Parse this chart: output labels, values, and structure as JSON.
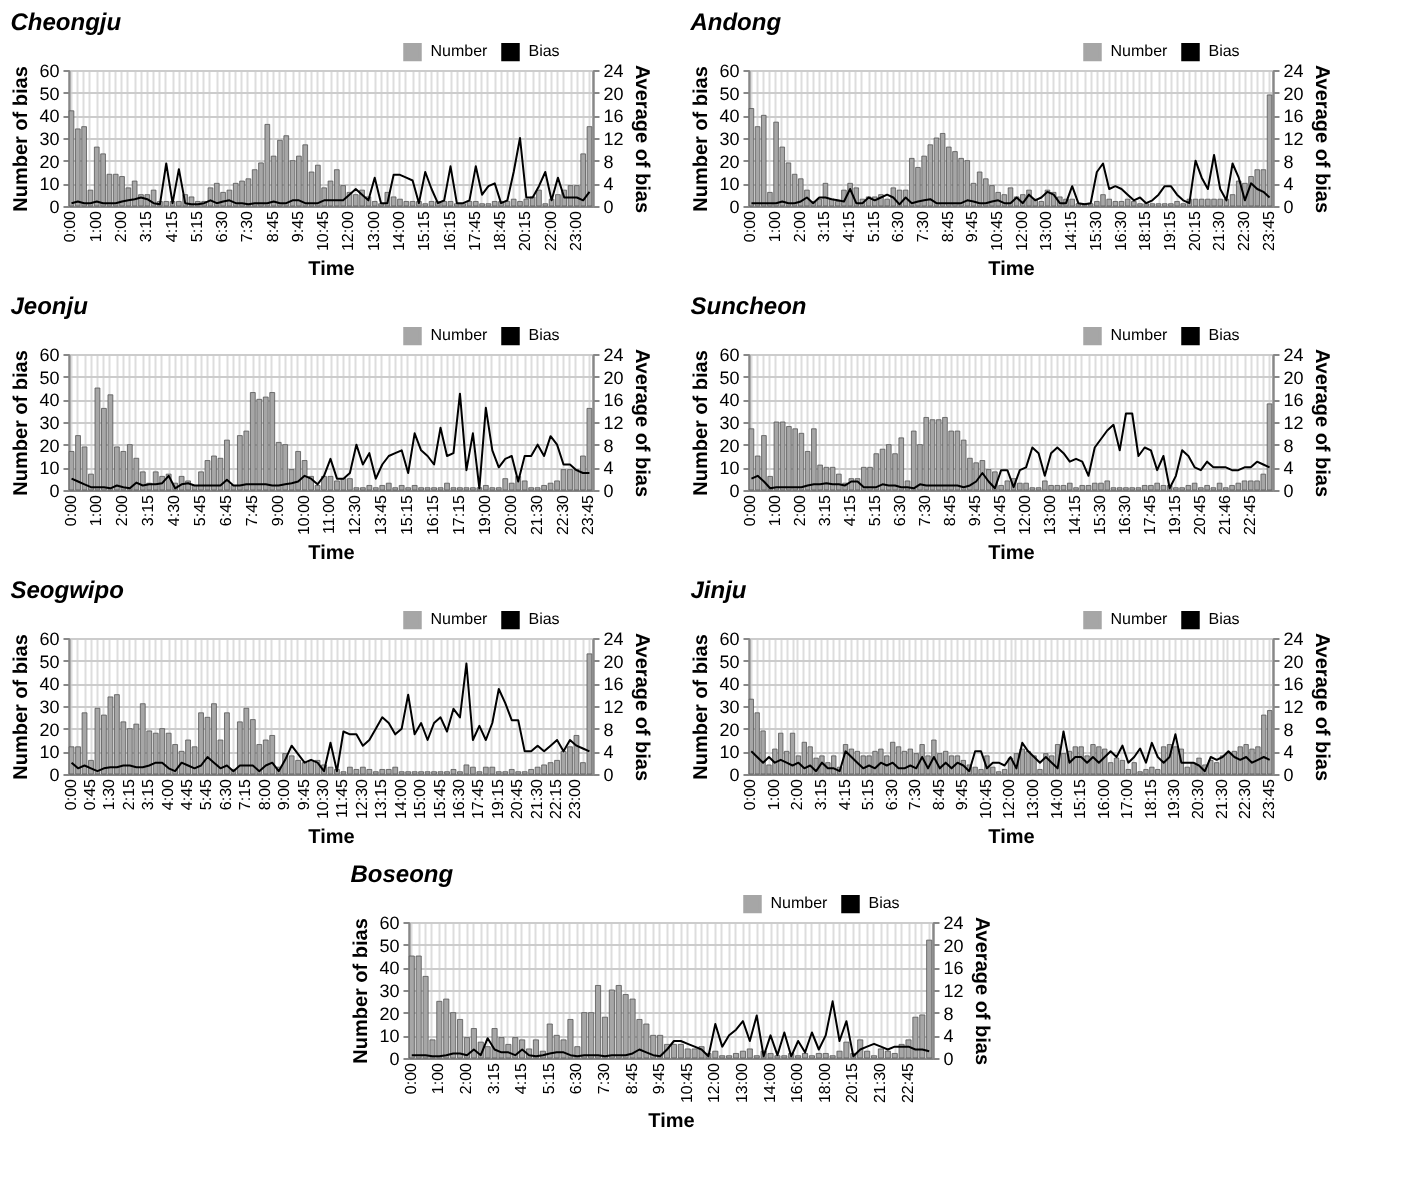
{
  "chart_data": [
    {
      "type": "bar",
      "title": "Cheongju",
      "xlabel": "Time",
      "ylabel": "Number of bias",
      "y2label": "Average of bias",
      "ylim": [
        0,
        60
      ],
      "yticks": [
        0,
        10,
        20,
        30,
        40,
        50,
        60
      ],
      "y2lim": [
        0,
        24
      ],
      "y2ticks": [
        0,
        4,
        8,
        12,
        16,
        20,
        24
      ],
      "grid": true,
      "legend": "top right",
      "categories": [
        "0:00",
        null,
        null,
        null,
        "1:00",
        null,
        null,
        null,
        "2:00",
        null,
        null,
        null,
        "3:15",
        null,
        null,
        null,
        "4:15",
        null,
        null,
        null,
        "5:15",
        null,
        null,
        null,
        "6:30",
        null,
        null,
        null,
        "7:30",
        null,
        null,
        null,
        "8:45",
        null,
        null,
        null,
        "9:45",
        null,
        null,
        null,
        "10:45",
        null,
        null,
        null,
        "12:00",
        null,
        null,
        null,
        "13:00",
        null,
        null,
        null,
        "14:00",
        null,
        null,
        null,
        "15:15",
        null,
        null,
        null,
        "16:15",
        null,
        null,
        null,
        "17:45",
        null,
        null,
        null,
        "18:45",
        null,
        null,
        null,
        "20:15",
        null,
        null,
        null,
        "22:00",
        null,
        null,
        null,
        "23:00",
        null,
        null
      ],
      "series": [
        {
          "name": "Number",
          "color": "#a6a6a6",
          "values": [
            42,
            34,
            35,
            7,
            26,
            23,
            14,
            14,
            13,
            8,
            11,
            5,
            5,
            7,
            2,
            2,
            2,
            2,
            5,
            4,
            2,
            2,
            8,
            10,
            6,
            7,
            10,
            11,
            12,
            16,
            19,
            36,
            22,
            29,
            31,
            20,
            22,
            27,
            15,
            18,
            8,
            11,
            16,
            9,
            6,
            5,
            7,
            4,
            2,
            1,
            6,
            4,
            3,
            2,
            2,
            2,
            1,
            2,
            2,
            2,
            2,
            1,
            1,
            2,
            2,
            1,
            1,
            2,
            2,
            2,
            3,
            2,
            3,
            4,
            7,
            1,
            3,
            5,
            7,
            9,
            9,
            23,
            35
          ]
        },
        {
          "name": "Bias",
          "type": "line",
          "color": "#000000",
          "axis": "y2",
          "values": [
            0.5,
            0.8,
            0.5,
            0.5,
            0.8,
            0.5,
            0.5,
            0.5,
            0.8,
            1,
            1.2,
            1.5,
            1.2,
            0.5,
            0.3,
            7.5,
            0.5,
            6.5,
            0.5,
            0.3,
            0.3,
            0.5,
            1,
            0.5,
            0.8,
            1,
            0.5,
            0.5,
            0.3,
            0.5,
            0.5,
            0.5,
            0.8,
            0.5,
            0.5,
            1,
            1,
            0.5,
            0.5,
            0.5,
            1,
            1,
            1,
            1,
            2,
            3,
            2,
            1,
            5,
            0.5,
            0.5,
            5.5,
            5.5,
            5,
            4.5,
            0.5,
            6,
            3,
            0.5,
            1,
            7,
            0.5,
            0.5,
            1,
            7,
            2,
            3.5,
            4,
            0.5,
            1,
            6,
            12,
            1.5,
            1.5,
            3.5,
            6,
            1,
            5,
            1.5,
            1.5,
            1.5,
            1,
            2.5
          ]
        }
      ]
    },
    {
      "type": "bar",
      "title": "Andong",
      "xlabel": "Time",
      "ylabel": "Number of bias",
      "y2label": "Average of bias",
      "ylim": [
        0,
        60
      ],
      "yticks": [
        0,
        10,
        20,
        30,
        40,
        50,
        60
      ],
      "y2lim": [
        0,
        24
      ],
      "y2ticks": [
        0,
        4,
        8,
        12,
        16,
        20,
        24
      ],
      "grid": true,
      "legend": "top right",
      "categories": [
        "0:00",
        null,
        null,
        null,
        "1:00",
        null,
        null,
        null,
        "2:00",
        null,
        null,
        null,
        "3:15",
        null,
        null,
        null,
        "4:15",
        null,
        null,
        null,
        "5:15",
        null,
        null,
        null,
        "6:30",
        null,
        null,
        null,
        "7:30",
        null,
        null,
        null,
        "8:45",
        null,
        null,
        null,
        "9:45",
        null,
        null,
        null,
        "10:45",
        null,
        null,
        null,
        "12:00",
        null,
        null,
        null,
        "13:00",
        null,
        null,
        null,
        "14:15",
        null,
        null,
        null,
        "15:30",
        null,
        null,
        null,
        "16:30",
        null,
        null,
        null,
        "18:15",
        null,
        null,
        null,
        "19:15",
        null,
        null,
        null,
        "20:15",
        null,
        null,
        null,
        "21:30",
        null,
        null,
        null,
        "22:30",
        null,
        null,
        null,
        "23:45"
      ],
      "series": [
        {
          "name": "Number",
          "color": "#a6a6a6",
          "values": [
            43,
            35,
            40,
            6,
            37,
            26,
            19,
            14,
            12,
            7,
            2,
            3,
            10,
            3,
            2,
            7,
            10,
            8,
            3,
            4,
            4,
            5,
            3,
            8,
            7,
            7,
            21,
            17,
            22,
            27,
            30,
            32,
            26,
            24,
            21,
            20,
            10,
            15,
            12,
            9,
            6,
            5,
            8,
            4,
            5,
            7,
            3,
            2,
            7,
            6,
            4,
            3,
            3,
            1,
            1,
            1,
            2,
            5,
            3,
            2,
            2,
            3,
            2,
            1,
            1,
            1,
            1,
            1,
            1,
            2,
            1,
            3,
            3,
            3,
            3,
            3,
            3,
            3,
            5,
            11,
            10,
            13,
            16,
            16,
            49
          ]
        },
        {
          "name": "Bias",
          "type": "line",
          "color": "#000000",
          "axis": "y2",
          "values": [
            0.5,
            0.5,
            0.5,
            0.5,
            0.5,
            0.8,
            0.5,
            0.5,
            0.8,
            1.5,
            0.5,
            1.5,
            1.5,
            1.2,
            1,
            0.8,
            3,
            0.5,
            0.5,
            1.5,
            1,
            1.5,
            2,
            1.5,
            0.3,
            1.5,
            0.5,
            0.8,
            1,
            1.2,
            0.5,
            0.5,
            0.5,
            0.5,
            0.5,
            1,
            0.8,
            0.5,
            0.5,
            0.8,
            1,
            0.5,
            0.5,
            1.5,
            0.5,
            2,
            1,
            1.5,
            2.5,
            2,
            0.5,
            0.5,
            3.5,
            0.5,
            0.3,
            0.5,
            6,
            7.5,
            3,
            3.5,
            3,
            2,
            1,
            1.5,
            0.5,
            1,
            2,
            3.5,
            3.5,
            2,
            1,
            0.5,
            8,
            5,
            3,
            9,
            3,
            1,
            7.5,
            5,
            1,
            4,
            3,
            2.5,
            1.5
          ]
        }
      ]
    },
    {
      "type": "bar",
      "title": "Jeonju",
      "xlabel": "Time",
      "ylabel": "Number of bias",
      "y2label": "Average of bias",
      "ylim": [
        0,
        60
      ],
      "yticks": [
        0,
        10,
        20,
        30,
        40,
        50,
        60
      ],
      "y2lim": [
        0,
        24
      ],
      "y2ticks": [
        0,
        4,
        8,
        12,
        16,
        20,
        24
      ],
      "grid": true,
      "legend": "top right",
      "categories": [
        "0:00",
        null,
        null,
        null,
        "1:00",
        null,
        null,
        null,
        "2:00",
        null,
        null,
        null,
        "3:15",
        null,
        null,
        null,
        "4:30",
        null,
        null,
        null,
        "5:45",
        null,
        null,
        null,
        "6:45",
        null,
        null,
        null,
        "7:45",
        null,
        null,
        null,
        "9:00",
        null,
        null,
        null,
        "10:00",
        null,
        null,
        null,
        "11:00",
        null,
        null,
        null,
        "12:30",
        null,
        null,
        null,
        "13:45",
        null,
        null,
        null,
        "15:15",
        null,
        null,
        null,
        "16:15",
        null,
        null,
        null,
        "17:15",
        null,
        null,
        null,
        "19:00",
        null,
        null,
        null,
        "20:00",
        null,
        null,
        null,
        "21:30",
        null,
        null,
        null,
        "22:30",
        null,
        null,
        null,
        "23:45"
      ],
      "series": [
        {
          "name": "Number",
          "color": "#a6a6a6",
          "values": [
            17,
            24,
            19,
            7,
            45,
            36,
            42,
            19,
            17,
            20,
            14,
            8,
            3,
            8,
            6,
            7,
            3,
            6,
            4,
            2,
            8,
            13,
            15,
            14,
            22,
            2,
            24,
            26,
            43,
            40,
            41,
            43,
            21,
            20,
            9,
            17,
            13,
            6,
            2,
            6,
            6,
            4,
            5,
            5,
            1,
            1,
            2,
            1,
            2,
            3,
            1,
            2,
            1,
            2,
            1,
            1,
            1,
            1,
            3,
            1,
            1,
            1,
            1,
            1,
            2,
            1,
            1,
            5,
            3,
            6,
            4,
            1,
            1,
            2,
            3,
            4,
            9,
            9,
            9,
            15,
            36
          ]
        },
        {
          "name": "Bias",
          "type": "line",
          "color": "#000000",
          "axis": "y2",
          "values": [
            2,
            1.5,
            1,
            0.5,
            0.5,
            0.5,
            0.3,
            0.8,
            0.5,
            0.3,
            1.3,
            0.8,
            1,
            1,
            1.2,
            2.5,
            0.3,
            1,
            1.2,
            0.8,
            0.8,
            0.8,
            0.8,
            0.8,
            1.8,
            0.8,
            0.8,
            1,
            1,
            1,
            1,
            0.8,
            0.8,
            1,
            1.2,
            1.5,
            2.5,
            2,
            1,
            2.5,
            5.5,
            2,
            2,
            3,
            8,
            4.5,
            6.5,
            2,
            4.5,
            6,
            6.5,
            7,
            3,
            10,
            7,
            6,
            4.5,
            11,
            6,
            6.5,
            17,
            3.5,
            10,
            0.3,
            14.5,
            7,
            4,
            5.5,
            6,
            1.5,
            6,
            6,
            8,
            6,
            9.5,
            8,
            4.5,
            4.5,
            3.5,
            3,
            3
          ]
        }
      ]
    },
    {
      "type": "bar",
      "title": "Suncheon",
      "xlabel": "Time",
      "ylabel": "Number of bias",
      "y2label": "Average of bias",
      "ylim": [
        0,
        60
      ],
      "yticks": [
        0,
        10,
        20,
        30,
        40,
        50,
        60
      ],
      "y2lim": [
        0,
        24
      ],
      "y2ticks": [
        0,
        4,
        8,
        12,
        16,
        20,
        24
      ],
      "grid": true,
      "legend": "top right",
      "categories": [
        "0:00",
        null,
        null,
        null,
        "1:00",
        null,
        null,
        null,
        "2:00",
        null,
        null,
        null,
        "3:15",
        null,
        null,
        null,
        "4:15",
        null,
        null,
        null,
        "5:15",
        null,
        null,
        null,
        "6:30",
        null,
        null,
        null,
        "7:30",
        null,
        null,
        null,
        "8:45",
        null,
        null,
        null,
        "9:45",
        null,
        null,
        null,
        "10:45",
        null,
        null,
        null,
        "12:00",
        null,
        null,
        null,
        "13:00",
        null,
        null,
        null,
        "14:15",
        null,
        null,
        null,
        "15:30",
        null,
        null,
        null,
        "16:30",
        null,
        null,
        null,
        "17:45",
        null,
        null,
        null,
        "19:15",
        null,
        null,
        null,
        "20:45",
        null,
        null,
        null,
        "21:46",
        null,
        null,
        null,
        "22:45",
        null,
        null,
        null
      ],
      "series": [
        {
          "name": "Number",
          "color": "#a6a6a6",
          "values": [
            27,
            15,
            24,
            6,
            30,
            30,
            28,
            27,
            25,
            17,
            27,
            11,
            10,
            10,
            7,
            3,
            5,
            5,
            10,
            10,
            16,
            18,
            20,
            16,
            23,
            4,
            26,
            20,
            32,
            31,
            31,
            32,
            26,
            26,
            22,
            14,
            12,
            13,
            9,
            8,
            2,
            4,
            5,
            3,
            3,
            1,
            1,
            4,
            2,
            2,
            2,
            3,
            1,
            2,
            2,
            3,
            3,
            4,
            1,
            1,
            1,
            1,
            1,
            2,
            2,
            3,
            2,
            2,
            1,
            1,
            2,
            3,
            1,
            2,
            1,
            3,
            1,
            2,
            3,
            4,
            4,
            4,
            7,
            38
          ]
        },
        {
          "name": "Bias",
          "type": "line",
          "color": "#000000",
          "axis": "y2",
          "values": [
            2,
            2.5,
            1.5,
            0.3,
            0.5,
            0.5,
            0.5,
            0.5,
            0.5,
            0.8,
            1,
            1,
            1.2,
            1,
            1,
            0.8,
            1.5,
            1.5,
            0.5,
            0.5,
            0.5,
            1,
            0.8,
            0.8,
            0.5,
            0.5,
            0.3,
            1,
            0.8,
            0.8,
            0.8,
            0.8,
            0.8,
            0.8,
            0.5,
            0.8,
            1.5,
            3,
            1.5,
            0.3,
            3.5,
            3.5,
            0.5,
            3.5,
            4,
            7.5,
            6.5,
            2.5,
            6.5,
            7.5,
            6.5,
            5,
            5.5,
            5,
            2.5,
            7.5,
            9,
            10.5,
            11.5,
            7,
            13.5,
            13.5,
            6,
            7.5,
            7,
            3.5,
            6,
            0.3,
            2.5,
            7,
            6,
            4,
            3.5,
            5,
            4,
            4,
            4,
            3.5,
            3.5,
            4,
            4,
            5,
            4.5,
            4
          ]
        }
      ]
    },
    {
      "type": "bar",
      "title": "Seogwipo",
      "xlabel": "Time",
      "ylabel": "Number of bias",
      "y2label": "Average of bias",
      "ylim": [
        0,
        60
      ],
      "yticks": [
        0,
        10,
        20,
        30,
        40,
        50,
        60
      ],
      "y2lim": [
        0,
        24
      ],
      "y2ticks": [
        0,
        4,
        8,
        12,
        16,
        20,
        24
      ],
      "grid": true,
      "legend": "top right",
      "categories": [
        "0:00",
        null,
        null,
        "0:45",
        null,
        null,
        "1:30",
        null,
        null,
        "2:15",
        null,
        null,
        "3:15",
        null,
        null,
        "4:00",
        null,
        null,
        "4:45",
        null,
        null,
        "5:45",
        null,
        null,
        "6:30",
        null,
        null,
        "7:15",
        null,
        null,
        "8:00",
        null,
        null,
        "9:00",
        null,
        null,
        "9:45",
        null,
        null,
        "10:30",
        null,
        null,
        "11:45",
        null,
        null,
        "12:30",
        null,
        null,
        "13:15",
        null,
        null,
        "14:00",
        null,
        null,
        "15:00",
        null,
        null,
        "15:45",
        null,
        null,
        "16:30",
        null,
        null,
        "17:45",
        null,
        null,
        "19:15",
        null,
        null,
        "20:45",
        null,
        null,
        "21:30",
        null,
        null,
        "22:15",
        null,
        null,
        "23:00",
        null,
        null
      ],
      "series": [
        {
          "name": "Number",
          "color": "#a6a6a6",
          "values": [
            12,
            12,
            27,
            6,
            29,
            26,
            34,
            35,
            23,
            20,
            22,
            31,
            19,
            18,
            20,
            18,
            13,
            10,
            15,
            12,
            27,
            25,
            31,
            15,
            27,
            2,
            23,
            29,
            24,
            13,
            15,
            17,
            3,
            9,
            8,
            6,
            5,
            6,
            6,
            4,
            3,
            2,
            1,
            3,
            2,
            3,
            2,
            1,
            2,
            2,
            3,
            1,
            1,
            1,
            1,
            1,
            1,
            1,
            1,
            2,
            1,
            4,
            3,
            1,
            3,
            3,
            1,
            1,
            2,
            1,
            1,
            2,
            3,
            4,
            5,
            6,
            10,
            12,
            17,
            5,
            53
          ]
        },
        {
          "name": "Bias",
          "type": "line",
          "color": "#000000",
          "axis": "y2",
          "values": [
            2,
            1,
            1.5,
            1,
            0.5,
            1,
            1.2,
            1.2,
            1.5,
            1.5,
            1.2,
            1.2,
            1.5,
            2,
            2,
            1,
            0.5,
            2,
            1.5,
            1,
            1.5,
            3,
            2,
            1,
            1.5,
            0.5,
            1.5,
            1.5,
            1.5,
            0.5,
            1.5,
            2,
            0.5,
            2.5,
            5,
            3.5,
            2,
            2.5,
            2,
            0.5,
            5.5,
            0.5,
            7.5,
            7,
            7,
            5,
            6,
            8,
            10,
            9,
            7,
            8,
            14,
            7,
            9,
            6,
            9,
            10,
            7.5,
            11.5,
            10,
            19.5,
            6,
            8.5,
            6,
            9,
            15,
            12.5,
            9.5,
            9.5,
            4,
            4,
            5,
            4,
            5,
            6,
            4,
            6,
            5,
            4.5,
            4
          ]
        }
      ]
    },
    {
      "type": "bar",
      "title": "Jinju",
      "xlabel": "Time",
      "ylabel": "Number of bias",
      "y2label": "Average of bias",
      "ylim": [
        0,
        60
      ],
      "yticks": [
        0,
        10,
        20,
        30,
        40,
        50,
        60
      ],
      "y2lim": [
        0,
        24
      ],
      "y2ticks": [
        0,
        4,
        8,
        12,
        16,
        20,
        24
      ],
      "grid": true,
      "legend": "top right",
      "categories": [
        "0:00",
        null,
        null,
        null,
        "1:00",
        null,
        null,
        null,
        "2:00",
        null,
        null,
        null,
        "3:15",
        null,
        null,
        null,
        "4:15",
        null,
        null,
        null,
        "5:15",
        null,
        null,
        null,
        "6:30",
        null,
        null,
        null,
        "7:30",
        null,
        null,
        null,
        "8:45",
        null,
        null,
        null,
        "9:45",
        null,
        null,
        null,
        "10:45",
        null,
        null,
        null,
        "12:00",
        null,
        null,
        null,
        "13:00",
        null,
        null,
        null,
        "14:00",
        null,
        null,
        null,
        "15:15",
        null,
        null,
        null,
        "16:00",
        null,
        null,
        null,
        "17:00",
        null,
        null,
        null,
        "18:15",
        null,
        null,
        null,
        "19:30",
        null,
        null,
        null,
        "20:30",
        null,
        null,
        null,
        "21:30",
        null,
        null,
        null,
        "22:30",
        null,
        null,
        null,
        "23:45"
      ],
      "series": [
        {
          "name": "Number",
          "color": "#a6a6a6",
          "values": [
            33,
            27,
            19,
            4,
            11,
            18,
            10,
            18,
            8,
            14,
            12,
            7,
            8,
            5,
            8,
            3,
            13,
            11,
            10,
            8,
            8,
            10,
            11,
            8,
            14,
            12,
            10,
            11,
            9,
            13,
            8,
            15,
            9,
            10,
            8,
            8,
            6,
            4,
            3,
            2,
            8,
            3,
            1,
            2,
            7,
            9,
            11,
            10,
            8,
            2,
            9,
            8,
            13,
            9,
            10,
            12,
            12,
            8,
            13,
            12,
            11,
            5,
            7,
            6,
            2,
            5,
            1,
            2,
            3,
            2,
            12,
            13,
            12,
            11,
            3,
            5,
            7,
            4,
            6,
            5,
            8,
            9,
            10,
            12,
            13,
            11,
            12,
            26,
            28
          ]
        },
        {
          "name": "Bias",
          "type": "line",
          "color": "#000000",
          "axis": "y2",
          "values": [
            4,
            3,
            2,
            3,
            2,
            2.5,
            2,
            1.5,
            2,
            1,
            1.5,
            0.5,
            2,
            1,
            1,
            0.5,
            4,
            3,
            2,
            1,
            1.5,
            1,
            2,
            1.5,
            2,
            1,
            1,
            1.5,
            1,
            3,
            1,
            3,
            1,
            2,
            1,
            2,
            1.5,
            0.5,
            4,
            4,
            1,
            2,
            2,
            1.5,
            3,
            1,
            5.5,
            4,
            3,
            2,
            3,
            2,
            1,
            7.5,
            2,
            3,
            3,
            2,
            3,
            2,
            3,
            4,
            3,
            5,
            2,
            3,
            4.5,
            2,
            5.5,
            3,
            2,
            3,
            7,
            2,
            2,
            2,
            1.5,
            0.5,
            3,
            2.5,
            3,
            4,
            3,
            2.5,
            3,
            2,
            2.5,
            3,
            2.5
          ]
        }
      ]
    },
    {
      "type": "bar",
      "title": "Boseong",
      "xlabel": "Time",
      "ylabel": "Number of bias",
      "y2label": "Average of bias",
      "ylim": [
        0,
        60
      ],
      "yticks": [
        0,
        10,
        20,
        30,
        40,
        50,
        60
      ],
      "y2lim": [
        0,
        24
      ],
      "y2ticks": [
        0,
        4,
        8,
        12,
        16,
        20,
        24
      ],
      "grid": true,
      "legend": "top right",
      "categories": [
        "0:00",
        null,
        null,
        null,
        "1:00",
        null,
        null,
        null,
        "2:00",
        null,
        null,
        null,
        "3:15",
        null,
        null,
        null,
        "4:15",
        null,
        null,
        null,
        "5:15",
        null,
        null,
        null,
        "6:30",
        null,
        null,
        null,
        "7:30",
        null,
        null,
        null,
        "8:45",
        null,
        null,
        null,
        "9:45",
        null,
        null,
        null,
        "10:45",
        null,
        null,
        null,
        "12:00",
        null,
        null,
        null,
        "13:00",
        null,
        null,
        null,
        "14:00",
        null,
        null,
        null,
        "16:00",
        null,
        null,
        null,
        "18:00",
        null,
        null,
        null,
        "20:15",
        null,
        null,
        null,
        "21:30",
        null,
        null,
        null,
        "22:45",
        null,
        null,
        null
      ],
      "series": [
        {
          "name": "Number",
          "color": "#a6a6a6",
          "values": [
            45,
            45,
            36,
            8,
            25,
            26,
            20,
            17,
            9,
            13,
            7,
            5,
            13,
            9,
            6,
            9,
            8,
            4,
            8,
            3,
            15,
            10,
            8,
            17,
            5,
            20,
            20,
            32,
            18,
            30,
            32,
            28,
            26,
            17,
            15,
            10,
            10,
            6,
            6,
            6,
            4,
            4,
            5,
            2,
            3,
            1,
            1,
            2,
            3,
            4,
            1,
            3,
            2,
            1,
            1,
            2,
            1,
            2,
            1,
            2,
            2,
            1,
            3,
            7,
            2,
            8,
            3,
            1,
            4,
            3,
            2,
            6,
            8,
            18,
            19,
            52
          ]
        },
        {
          "name": "Bias",
          "type": "line",
          "color": "#000000",
          "axis": "y2",
          "values": [
            0.5,
            0.5,
            0.5,
            0.3,
            0.3,
            0.5,
            0.8,
            0.8,
            0.5,
            1.5,
            0.5,
            3.5,
            1.5,
            1,
            1,
            0.5,
            1.5,
            0.5,
            0.3,
            0.5,
            0.8,
            1,
            1,
            0.5,
            0.3,
            0.5,
            0.5,
            0.5,
            0.3,
            0.5,
            0.5,
            0.5,
            0.8,
            1.5,
            1,
            0.5,
            0.3,
            1.5,
            3,
            3,
            2.5,
            2,
            1.5,
            0.3,
            6,
            2,
            4,
            5,
            6.5,
            3,
            7.5,
            0.3,
            4,
            0.5,
            4.5,
            0.3,
            3,
            1,
            4.5,
            1.5,
            4,
            10,
            3,
            6.5,
            0.3,
            1.5,
            2,
            2.5,
            2,
            1.5,
            2,
            2,
            2,
            1.5,
            1.5,
            1.2
          ]
        }
      ]
    }
  ]
}
